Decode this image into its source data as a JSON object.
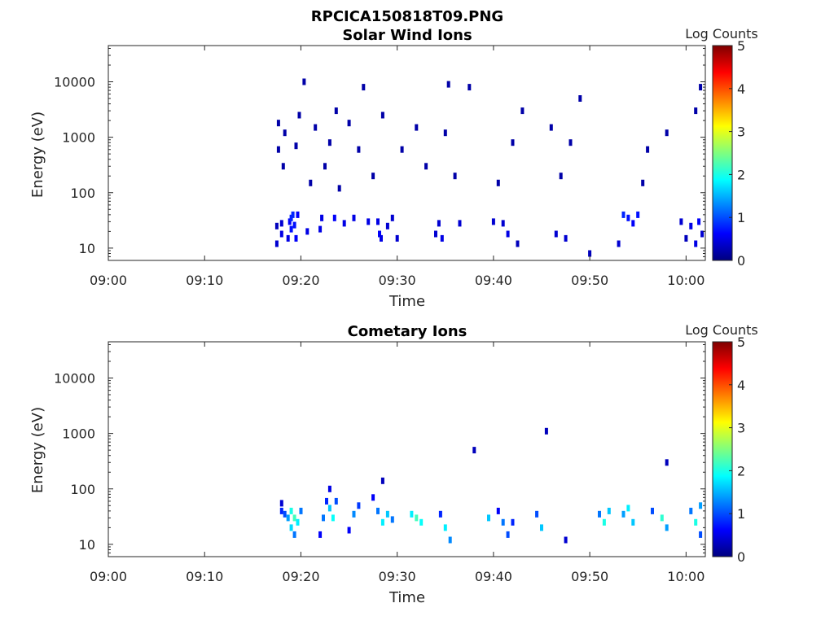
{
  "figure": {
    "title": "RPCICA150818T09.PNG"
  },
  "colors": {
    "colormap": [
      "#00007f",
      "#0000ff",
      "#007fff",
      "#00ffff",
      "#7fff7f",
      "#ffff00",
      "#ff7f00",
      "#ff0000",
      "#7f0000"
    ]
  },
  "chart_data": [
    {
      "type": "heatmap",
      "title": "Solar Wind Ions",
      "xlabel": "Time",
      "ylabel": "Energy (eV)",
      "x_scale": "time",
      "y_scale": "log",
      "xlim": [
        "09:00",
        "10:02"
      ],
      "ylim": [
        6,
        45000
      ],
      "xticks": [
        "09:00",
        "09:10",
        "09:20",
        "09:30",
        "09:40",
        "09:50",
        "10:00"
      ],
      "yticks": [
        10,
        100,
        1000,
        10000
      ],
      "ytick_labels": [
        "10",
        "100",
        "1000",
        "10000"
      ],
      "colorbar": {
        "label": "Log Counts",
        "min": 0,
        "max": 5,
        "ticks": [
          "0",
          "1",
          "2",
          "3",
          "4",
          "5"
        ]
      },
      "cells": [
        [
          "09:17:30",
          12,
          0.4
        ],
        [
          "09:17:30",
          25,
          0.3
        ],
        [
          "09:17:40",
          600,
          0.2
        ],
        [
          "09:17:40",
          1800,
          0.2
        ],
        [
          "09:18:00",
          18,
          0.5
        ],
        [
          "09:18:00",
          28,
          0.4
        ],
        [
          "09:18:10",
          300,
          0.2
        ],
        [
          "09:18:20",
          1200,
          0.2
        ],
        [
          "09:18:40",
          15,
          0.5
        ],
        [
          "09:18:50",
          30,
          0.6
        ],
        [
          "09:19:00",
          35,
          0.8
        ],
        [
          "09:19:00",
          22,
          0.7
        ],
        [
          "09:19:10",
          40,
          0.8
        ],
        [
          "09:19:20",
          26,
          0.7
        ],
        [
          "09:19:30",
          15,
          0.6
        ],
        [
          "09:19:40",
          40,
          0.6
        ],
        [
          "09:19:30",
          700,
          0.2
        ],
        [
          "09:19:50",
          2500,
          0.2
        ],
        [
          "09:20:20",
          10000,
          0.2
        ],
        [
          "09:20:40",
          20,
          0.5
        ],
        [
          "09:21:00",
          150,
          0.2
        ],
        [
          "09:21:30",
          1500,
          0.2
        ],
        [
          "09:22:00",
          22,
          0.5
        ],
        [
          "09:22:10",
          35,
          0.5
        ],
        [
          "09:22:30",
          300,
          0.2
        ],
        [
          "09:23:00",
          800,
          0.2
        ],
        [
          "09:23:30",
          35,
          0.6
        ],
        [
          "09:23:40",
          3000,
          0.2
        ],
        [
          "09:24:00",
          120,
          0.2
        ],
        [
          "09:24:30",
          28,
          0.5
        ],
        [
          "09:25:00",
          1800,
          0.2
        ],
        [
          "09:25:30",
          35,
          0.5
        ],
        [
          "09:26:00",
          600,
          0.2
        ],
        [
          "09:26:30",
          8000,
          0.2
        ],
        [
          "09:27:00",
          30,
          0.5
        ],
        [
          "09:27:30",
          200,
          0.2
        ],
        [
          "09:28:00",
          30,
          0.5
        ],
        [
          "09:28:10",
          18,
          0.6
        ],
        [
          "09:28:20",
          15,
          0.5
        ],
        [
          "09:28:30",
          2500,
          0.2
        ],
        [
          "09:29:00",
          25,
          0.4
        ],
        [
          "09:29:30",
          35,
          0.4
        ],
        [
          "09:30:00",
          15,
          0.4
        ],
        [
          "09:30:30",
          600,
          0.2
        ],
        [
          "09:32:00",
          1500,
          0.2
        ],
        [
          "09:33:00",
          300,
          0.2
        ],
        [
          "09:34:00",
          18,
          0.4
        ],
        [
          "09:34:20",
          28,
          0.4
        ],
        [
          "09:34:40",
          15,
          0.5
        ],
        [
          "09:35:00",
          1200,
          0.2
        ],
        [
          "09:35:20",
          9000,
          0.2
        ],
        [
          "09:36:00",
          200,
          0.2
        ],
        [
          "09:36:30",
          28,
          0.4
        ],
        [
          "09:37:30",
          8000,
          0.2
        ],
        [
          "09:40:00",
          30,
          0.4
        ],
        [
          "09:40:30",
          150,
          0.2
        ],
        [
          "09:41:00",
          28,
          0.4
        ],
        [
          "09:41:30",
          18,
          0.5
        ],
        [
          "09:42:00",
          800,
          0.2
        ],
        [
          "09:42:30",
          12,
          0.3
        ],
        [
          "09:43:00",
          3000,
          0.2
        ],
        [
          "09:46:00",
          1500,
          0.2
        ],
        [
          "09:46:30",
          18,
          0.4
        ],
        [
          "09:47:00",
          200,
          0.2
        ],
        [
          "09:47:30",
          15,
          0.4
        ],
        [
          "09:48:00",
          800,
          0.2
        ],
        [
          "09:49:00",
          5000,
          0.2
        ],
        [
          "09:50:00",
          8,
          0.3
        ],
        [
          "09:53:00",
          12,
          0.4
        ],
        [
          "09:53:30",
          40,
          0.8
        ],
        [
          "09:54:00",
          35,
          0.7
        ],
        [
          "09:54:30",
          28,
          0.6
        ],
        [
          "09:55:00",
          40,
          0.7
        ],
        [
          "09:55:30",
          150,
          0.2
        ],
        [
          "09:56:00",
          600,
          0.2
        ],
        [
          "09:58:00",
          1200,
          0.2
        ],
        [
          "09:59:30",
          30,
          0.4
        ],
        [
          "10:00:00",
          15,
          0.3
        ],
        [
          "10:00:30",
          25,
          0.5
        ],
        [
          "10:01:00",
          12,
          0.5
        ],
        [
          "10:01:20",
          30,
          0.6
        ],
        [
          "10:01:40",
          18,
          0.4
        ],
        [
          "10:01:00",
          3000,
          0.2
        ],
        [
          "10:01:30",
          8000,
          0.2
        ]
      ]
    },
    {
      "type": "heatmap",
      "title": "Cometary Ions",
      "xlabel": "Time",
      "ylabel": "Energy (eV)",
      "x_scale": "time",
      "y_scale": "log",
      "xlim": [
        "09:00",
        "10:02"
      ],
      "ylim": [
        6,
        45000
      ],
      "xticks": [
        "09:00",
        "09:10",
        "09:20",
        "09:30",
        "09:40",
        "09:50",
        "10:00"
      ],
      "yticks": [
        10,
        100,
        1000,
        10000
      ],
      "ytick_labels": [
        "10",
        "100",
        "1000",
        "10000"
      ],
      "colorbar": {
        "label": "Log Counts",
        "min": 0,
        "max": 5,
        "ticks": [
          "0",
          "1",
          "2",
          "3",
          "4",
          "5"
        ]
      },
      "cells": [
        [
          "09:18:00",
          55,
          0.4
        ],
        [
          "09:18:00",
          40,
          0.8
        ],
        [
          "09:18:20",
          35,
          1.0
        ],
        [
          "09:18:40",
          30,
          1.4
        ],
        [
          "09:19:00",
          20,
          1.7
        ],
        [
          "09:19:00",
          40,
          2.0
        ],
        [
          "09:19:20",
          15,
          1.2
        ],
        [
          "09:19:20",
          30,
          2.2
        ],
        [
          "09:19:40",
          25,
          1.8
        ],
        [
          "09:20:00",
          40,
          1.2
        ],
        [
          "09:22:00",
          15,
          0.6
        ],
        [
          "09:22:20",
          30,
          1.2
        ],
        [
          "09:22:40",
          60,
          0.8
        ],
        [
          "09:23:00",
          45,
          1.6
        ],
        [
          "09:23:00",
          100,
          0.5
        ],
        [
          "09:23:20",
          30,
          1.9
        ],
        [
          "09:23:40",
          60,
          1.0
        ],
        [
          "09:25:00",
          18,
          0.6
        ],
        [
          "09:25:30",
          35,
          1.3
        ],
        [
          "09:26:00",
          50,
          0.9
        ],
        [
          "09:27:30",
          70,
          0.6
        ],
        [
          "09:28:00",
          40,
          1.2
        ],
        [
          "09:28:30",
          25,
          1.8
        ],
        [
          "09:28:30",
          140,
          0.3
        ],
        [
          "09:29:00",
          35,
          1.6
        ],
        [
          "09:29:30",
          28,
          1.2
        ],
        [
          "09:31:30",
          35,
          1.8
        ],
        [
          "09:32:00",
          30,
          2.2
        ],
        [
          "09:32:30",
          25,
          1.9
        ],
        [
          "09:34:30",
          35,
          0.8
        ],
        [
          "09:35:00",
          20,
          1.8
        ],
        [
          "09:35:30",
          12,
          1.3
        ],
        [
          "09:38:00",
          500,
          0.3
        ],
        [
          "09:39:30",
          30,
          1.6
        ],
        [
          "09:40:30",
          40,
          0.6
        ],
        [
          "09:41:00",
          25,
          1.2
        ],
        [
          "09:41:30",
          15,
          1.0
        ],
        [
          "09:42:00",
          25,
          0.8
        ],
        [
          "09:44:30",
          35,
          1.0
        ],
        [
          "09:45:00",
          20,
          1.6
        ],
        [
          "09:45:30",
          1100,
          0.3
        ],
        [
          "09:47:30",
          12,
          0.4
        ],
        [
          "09:51:00",
          35,
          1.2
        ],
        [
          "09:51:30",
          25,
          2.0
        ],
        [
          "09:52:00",
          40,
          1.6
        ],
        [
          "09:53:30",
          35,
          1.4
        ],
        [
          "09:54:00",
          45,
          1.8
        ],
        [
          "09:54:30",
          25,
          1.6
        ],
        [
          "09:56:30",
          40,
          1.0
        ],
        [
          "09:57:30",
          30,
          2.1
        ],
        [
          "09:58:00",
          20,
          1.4
        ],
        [
          "09:58:00",
          300,
          0.3
        ],
        [
          "10:00:30",
          40,
          1.2
        ],
        [
          "10:01:00",
          25,
          2.0
        ],
        [
          "10:01:30",
          50,
          1.4
        ],
        [
          "10:01:30",
          15,
          1.0
        ]
      ]
    }
  ]
}
